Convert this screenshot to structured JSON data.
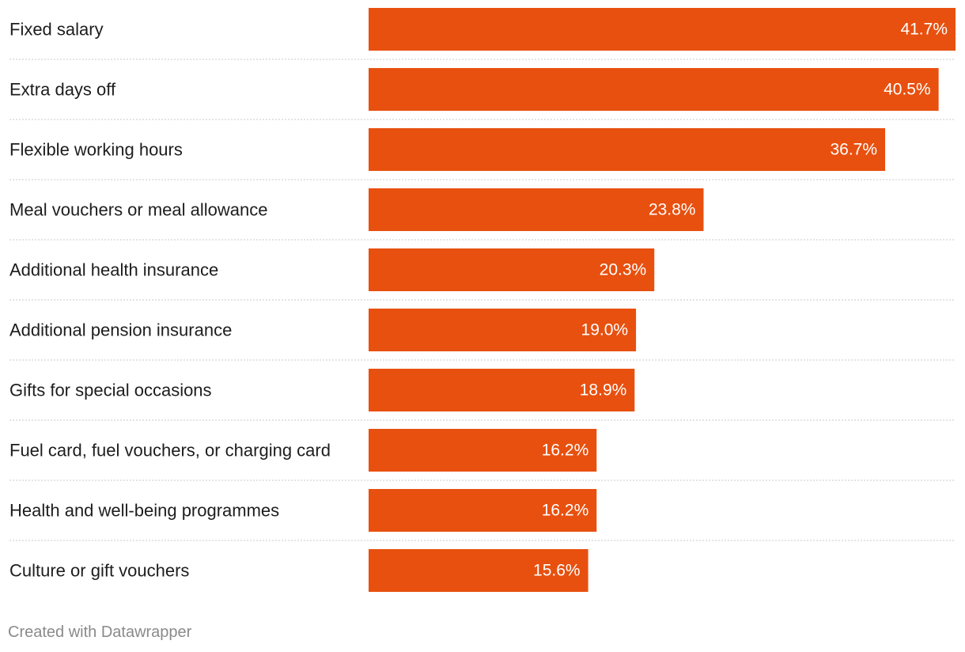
{
  "chart_data": {
    "type": "bar",
    "orientation": "horizontal",
    "title": "",
    "xlabel": "",
    "ylabel": "",
    "value_suffix": "%",
    "xlim": [
      0,
      41.7
    ],
    "bar_color": "#e8500f",
    "categories": [
      "Fixed salary",
      "Extra days off",
      "Flexible working hours",
      "Meal vouchers or meal allowance",
      "Additional health insurance",
      "Additional pension insurance",
      "Gifts for special occasions",
      "Fuel card, fuel vouchers, or charging card",
      "Health and well-being programmes",
      "Culture or gift vouchers"
    ],
    "values": [
      41.7,
      40.5,
      36.7,
      23.8,
      20.3,
      19.0,
      18.9,
      16.2,
      16.2,
      15.6
    ]
  },
  "footer": {
    "credit": "Created with Datawrapper"
  }
}
